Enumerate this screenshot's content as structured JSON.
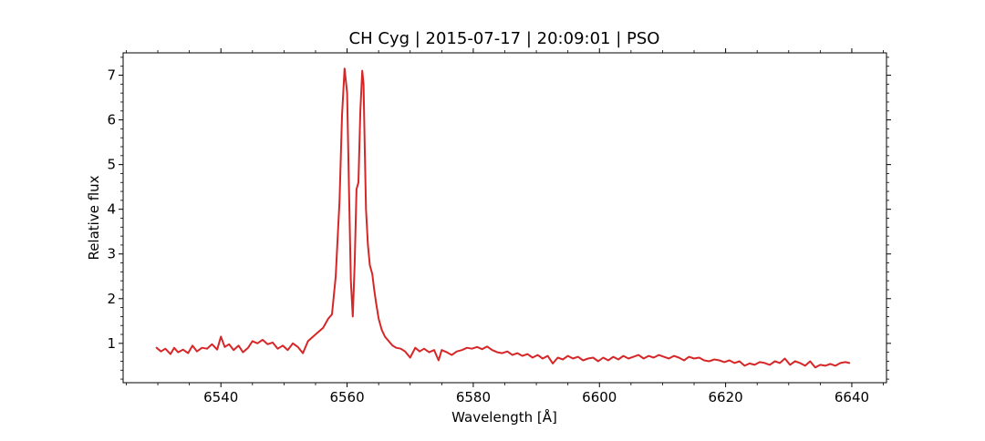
{
  "chart_data": {
    "type": "line",
    "title": "CH Cyg | 2015-07-17 | 20:09:01 | PSO",
    "xlabel": "Wavelength [Å]",
    "ylabel": "Relative flux",
    "xlim": [
      6524.5,
      6645.5
    ],
    "ylim": [
      0.12,
      7.5
    ],
    "xticks": [
      6540,
      6560,
      6580,
      6600,
      6620,
      6640
    ],
    "yticks": [
      1,
      2,
      3,
      4,
      5,
      6,
      7
    ],
    "grid": false,
    "legend": "none",
    "series": [
      {
        "color": "#d62728",
        "x": [
          6529.8,
          6530.5,
          6531.2,
          6532.0,
          6532.6,
          6533.2,
          6534.0,
          6534.8,
          6535.5,
          6536.2,
          6537.0,
          6537.8,
          6538.6,
          6539.4,
          6540.0,
          6540.6,
          6541.3,
          6542.0,
          6542.8,
          6543.5,
          6544.3,
          6545.0,
          6545.8,
          6546.6,
          6547.4,
          6548.2,
          6549.0,
          6549.8,
          6550.6,
          6551.4,
          6552.2,
          6553.0,
          6553.8,
          6554.6,
          6555.4,
          6556.2,
          6557.0,
          6557.6,
          6558.2,
          6558.8,
          6559.2,
          6559.6,
          6560.0,
          6560.3,
          6560.6,
          6560.9,
          6561.2,
          6561.5,
          6561.8,
          6562.1,
          6562.4,
          6562.6,
          6562.8,
          6563.0,
          6563.3,
          6563.6,
          6564.0,
          6564.3,
          6564.6,
          6565.0,
          6565.5,
          6566.0,
          6566.6,
          6567.2,
          6567.8,
          6568.5,
          6569.2,
          6570.0,
          6570.8,
          6571.5,
          6572.2,
          6573.0,
          6573.8,
          6574.5,
          6575.0,
          6575.8,
          6576.6,
          6577.4,
          6578.2,
          6579.0,
          6579.8,
          6580.6,
          6581.4,
          6582.2,
          6583.0,
          6583.8,
          6584.6,
          6585.4,
          6586.2,
          6587.0,
          6587.8,
          6588.6,
          6589.4,
          6590.2,
          6591.0,
          6591.8,
          6592.6,
          6593.4,
          6594.2,
          6595.0,
          6595.8,
          6596.6,
          6597.4,
          6598.2,
          6599.0,
          6599.8,
          6600.6,
          6601.4,
          6602.2,
          6603.0,
          6603.8,
          6604.6,
          6605.4,
          6606.2,
          6607.0,
          6607.8,
          6608.6,
          6609.4,
          6610.2,
          6611.0,
          6611.8,
          6612.6,
          6613.4,
          6614.2,
          6615.0,
          6615.8,
          6616.6,
          6617.4,
          6618.2,
          6619.0,
          6619.8,
          6620.6,
          6621.4,
          6622.2,
          6623.0,
          6623.8,
          6624.6,
          6625.4,
          6626.2,
          6627.0,
          6627.8,
          6628.6,
          6629.4,
          6630.2,
          6631.0,
          6631.8,
          6632.6,
          6633.4,
          6634.2,
          6635.0,
          6635.8,
          6636.6,
          6637.4,
          6638.2,
          6639.0,
          6639.6
        ],
        "y": [
          0.9,
          0.82,
          0.88,
          0.76,
          0.9,
          0.8,
          0.86,
          0.78,
          0.95,
          0.82,
          0.9,
          0.88,
          0.98,
          0.86,
          1.15,
          0.92,
          0.98,
          0.85,
          0.95,
          0.8,
          0.9,
          1.05,
          1.0,
          1.08,
          0.98,
          1.02,
          0.88,
          0.95,
          0.85,
          1.0,
          0.92,
          0.78,
          1.05,
          1.15,
          1.25,
          1.35,
          1.55,
          1.65,
          2.5,
          4.2,
          6.1,
          7.15,
          6.6,
          4.5,
          2.4,
          1.6,
          2.8,
          4.45,
          4.6,
          6.2,
          7.1,
          6.8,
          5.4,
          4.0,
          3.2,
          2.75,
          2.55,
          2.2,
          1.9,
          1.55,
          1.3,
          1.15,
          1.05,
          0.95,
          0.9,
          0.88,
          0.82,
          0.68,
          0.9,
          0.82,
          0.88,
          0.8,
          0.85,
          0.62,
          0.85,
          0.8,
          0.74,
          0.82,
          0.85,
          0.9,
          0.88,
          0.92,
          0.87,
          0.93,
          0.85,
          0.8,
          0.78,
          0.82,
          0.74,
          0.78,
          0.72,
          0.76,
          0.68,
          0.74,
          0.66,
          0.72,
          0.55,
          0.68,
          0.64,
          0.72,
          0.66,
          0.7,
          0.62,
          0.66,
          0.68,
          0.6,
          0.68,
          0.62,
          0.7,
          0.64,
          0.72,
          0.66,
          0.7,
          0.74,
          0.66,
          0.72,
          0.68,
          0.74,
          0.7,
          0.66,
          0.72,
          0.68,
          0.62,
          0.7,
          0.66,
          0.68,
          0.62,
          0.6,
          0.64,
          0.62,
          0.58,
          0.62,
          0.56,
          0.6,
          0.5,
          0.55,
          0.52,
          0.58,
          0.56,
          0.52,
          0.6,
          0.56,
          0.66,
          0.52,
          0.6,
          0.56,
          0.5,
          0.6,
          0.46,
          0.52,
          0.5,
          0.54,
          0.5,
          0.56,
          0.58,
          0.56
        ]
      }
    ]
  }
}
